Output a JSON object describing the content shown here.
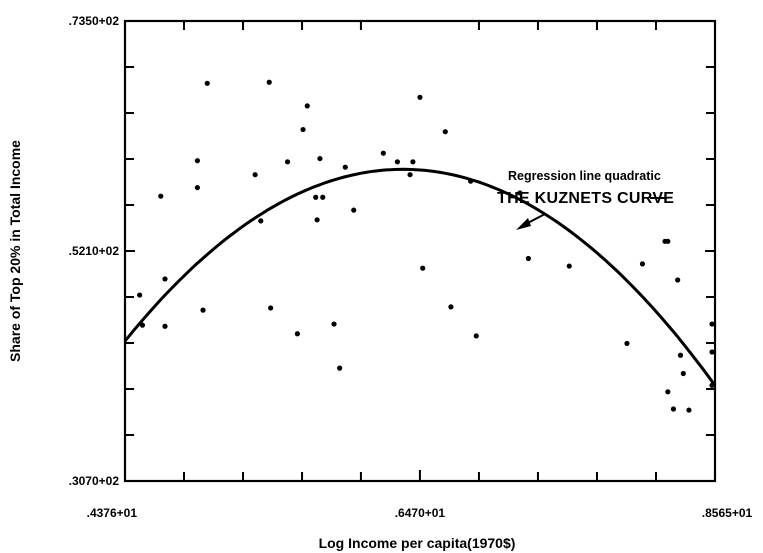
{
  "chart_data": {
    "type": "scatter",
    "title": "",
    "xlabel": "Log Income per capita(1970$)",
    "ylabel": "Share of Top 20% in Total Income",
    "xlim": [
      4.376,
      8.565
    ],
    "ylim": [
      30.7,
      73.5
    ],
    "x_tick_labels": [
      {
        "value": 4.376,
        "label": ".4376+01"
      },
      {
        "value": 6.47,
        "label": ".6470+01"
      },
      {
        "value": 8.565,
        "label": ".8565+01"
      }
    ],
    "y_tick_labels": [
      {
        "value": 30.7,
        "label": ".3070+02"
      },
      {
        "value": 52.1,
        "label": ".5210+02"
      },
      {
        "value": 73.5,
        "label": ".7350+02"
      }
    ],
    "x_minor_ticks": [
      4.795,
      5.214,
      5.633,
      6.051,
      6.889,
      7.308,
      7.727,
      8.146
    ],
    "y_minor_ticks": [
      34.98,
      39.26,
      43.54,
      47.82,
      56.38,
      60.66,
      64.94,
      69.22
    ],
    "grid": false,
    "points": [
      {
        "x": 4.48,
        "y": 48.0
      },
      {
        "x": 4.5,
        "y": 45.2
      },
      {
        "x": 4.63,
        "y": 57.2
      },
      {
        "x": 4.66,
        "y": 49.5
      },
      {
        "x": 4.66,
        "y": 45.1
      },
      {
        "x": 4.89,
        "y": 60.5
      },
      {
        "x": 4.89,
        "y": 58.0
      },
      {
        "x": 4.93,
        "y": 46.6
      },
      {
        "x": 4.96,
        "y": 67.7
      },
      {
        "x": 5.3,
        "y": 59.2
      },
      {
        "x": 5.34,
        "y": 54.9
      },
      {
        "x": 5.4,
        "y": 67.8
      },
      {
        "x": 5.41,
        "y": 46.8
      },
      {
        "x": 5.53,
        "y": 60.4
      },
      {
        "x": 5.6,
        "y": 44.4
      },
      {
        "x": 5.64,
        "y": 63.4
      },
      {
        "x": 5.67,
        "y": 65.6
      },
      {
        "x": 5.73,
        "y": 57.1
      },
      {
        "x": 5.74,
        "y": 55.0
      },
      {
        "x": 5.76,
        "y": 60.7
      },
      {
        "x": 5.78,
        "y": 57.1
      },
      {
        "x": 5.86,
        "y": 45.3
      },
      {
        "x": 5.9,
        "y": 41.2
      },
      {
        "x": 5.94,
        "y": 59.9
      },
      {
        "x": 6.0,
        "y": 55.9
      },
      {
        "x": 6.21,
        "y": 61.2
      },
      {
        "x": 6.31,
        "y": 60.4
      },
      {
        "x": 6.4,
        "y": 59.2
      },
      {
        "x": 6.42,
        "y": 60.4
      },
      {
        "x": 6.47,
        "y": 66.4
      },
      {
        "x": 6.49,
        "y": 50.5
      },
      {
        "x": 6.65,
        "y": 63.2
      },
      {
        "x": 6.69,
        "y": 46.9
      },
      {
        "x": 6.83,
        "y": 58.6
      },
      {
        "x": 6.87,
        "y": 44.2
      },
      {
        "x": 7.18,
        "y": 57.5
      },
      {
        "x": 7.24,
        "y": 51.4
      },
      {
        "x": 7.53,
        "y": 50.7
      },
      {
        "x": 7.94,
        "y": 43.5
      },
      {
        "x": 8.05,
        "y": 50.9
      },
      {
        "x": 8.21,
        "y": 53.0
      },
      {
        "x": 8.23,
        "y": 53.0
      },
      {
        "x": 8.23,
        "y": 39.0
      },
      {
        "x": 8.27,
        "y": 37.4
      },
      {
        "x": 8.3,
        "y": 49.4
      },
      {
        "x": 8.32,
        "y": 42.4
      },
      {
        "x": 8.34,
        "y": 40.7
      },
      {
        "x": 8.38,
        "y": 37.3
      },
      {
        "x": 8.62,
        "y": 45.3
      },
      {
        "x": 8.65,
        "y": 39.6
      },
      {
        "x": 8.89,
        "y": 42.7
      }
    ],
    "curve": {
      "label": "THE KUZNETS CURVE",
      "annotation": "Regression line quadratic",
      "model": "quadratic",
      "vertex_x": 6.35,
      "vertex_y": 59.7,
      "curvature": -4.1
    }
  }
}
